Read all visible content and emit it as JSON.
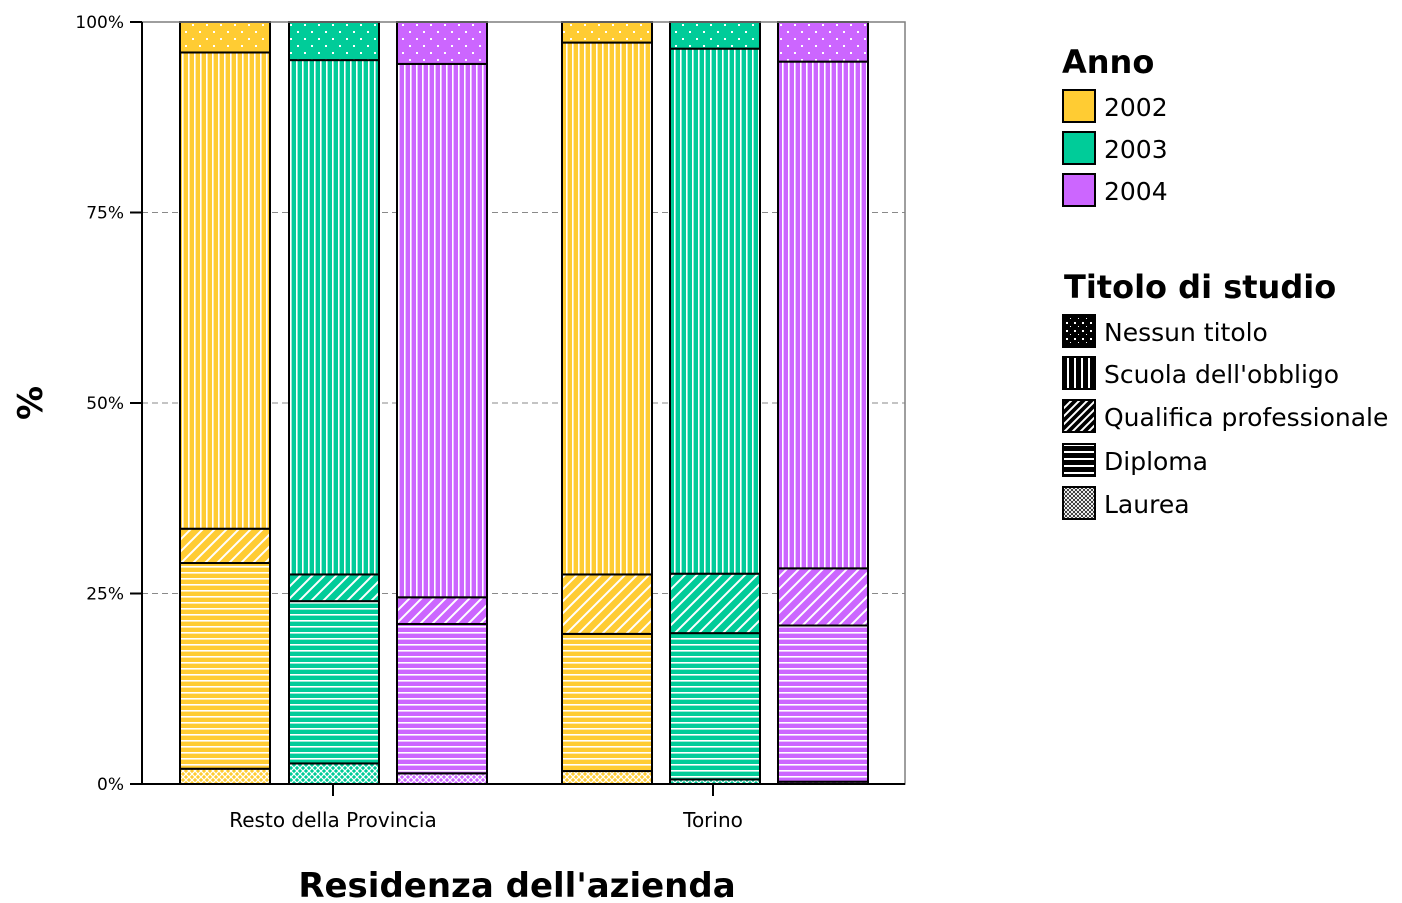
{
  "chart_data": {
    "type": "bar",
    "stacked": true,
    "normalized": true,
    "xlabel": "Residenza dell'azienda",
    "ylabel": "%",
    "ylim": [
      0,
      100
    ],
    "yticks": [
      "0%",
      "25%",
      "50%",
      "75%",
      "100%"
    ],
    "grid": "horizontal dashed",
    "categories": [
      "Resto della Provincia",
      "Torino"
    ],
    "legend": {
      "placement": "right",
      "color_title": "Anno",
      "color_entries": [
        {
          "label": "2002",
          "color": "#ffcc33"
        },
        {
          "label": "2003",
          "color": "#00cc99"
        },
        {
          "label": "2004",
          "color": "#cc66ff"
        }
      ],
      "pattern_title": "Titolo di studio",
      "pattern_entries": [
        {
          "label": "Nessun titolo",
          "pattern": "dots"
        },
        {
          "label": "Scuola dell'obbligo",
          "pattern": "vertical"
        },
        {
          "label": "Qualifica professionale",
          "pattern": "diagonal"
        },
        {
          "label": "Diploma",
          "pattern": "horizontal"
        },
        {
          "label": "Laurea",
          "pattern": "crosshatch"
        }
      ]
    },
    "bars": [
      {
        "category": "Resto della Provincia",
        "year": "2002",
        "segments": {
          "Laurea": 2.0,
          "Diploma": 27.0,
          "Qualifica professionale": 4.5,
          "Scuola dell'obbligo": 62.5,
          "Nessun titolo": 4.0
        }
      },
      {
        "category": "Resto della Provincia",
        "year": "2003",
        "segments": {
          "Laurea": 2.7,
          "Diploma": 21.3,
          "Qualifica professionale": 3.5,
          "Scuola dell'obbligo": 67.5,
          "Nessun titolo": 5.0
        }
      },
      {
        "category": "Resto della Provincia",
        "year": "2004",
        "segments": {
          "Laurea": 1.4,
          "Diploma": 19.6,
          "Qualifica professionale": 3.5,
          "Scuola dell'obbligo": 70.0,
          "Nessun titolo": 5.5
        }
      },
      {
        "category": "Torino",
        "year": "2002",
        "segments": {
          "Laurea": 1.7,
          "Diploma": 18.0,
          "Qualifica professionale": 7.8,
          "Scuola dell'obbligo": 69.8,
          "Nessun titolo": 2.7
        }
      },
      {
        "category": "Torino",
        "year": "2003",
        "segments": {
          "Laurea": 0.6,
          "Diploma": 19.2,
          "Qualifica professionale": 7.8,
          "Scuola dell'obbligo": 68.9,
          "Nessun titolo": 3.5
        }
      },
      {
        "category": "Torino",
        "year": "2004",
        "segments": {
          "Laurea": 0.3,
          "Diploma": 20.5,
          "Qualifica professionale": 7.5,
          "Scuola dell'obbligo": 66.5,
          "Nessun titolo": 5.2
        }
      }
    ]
  }
}
